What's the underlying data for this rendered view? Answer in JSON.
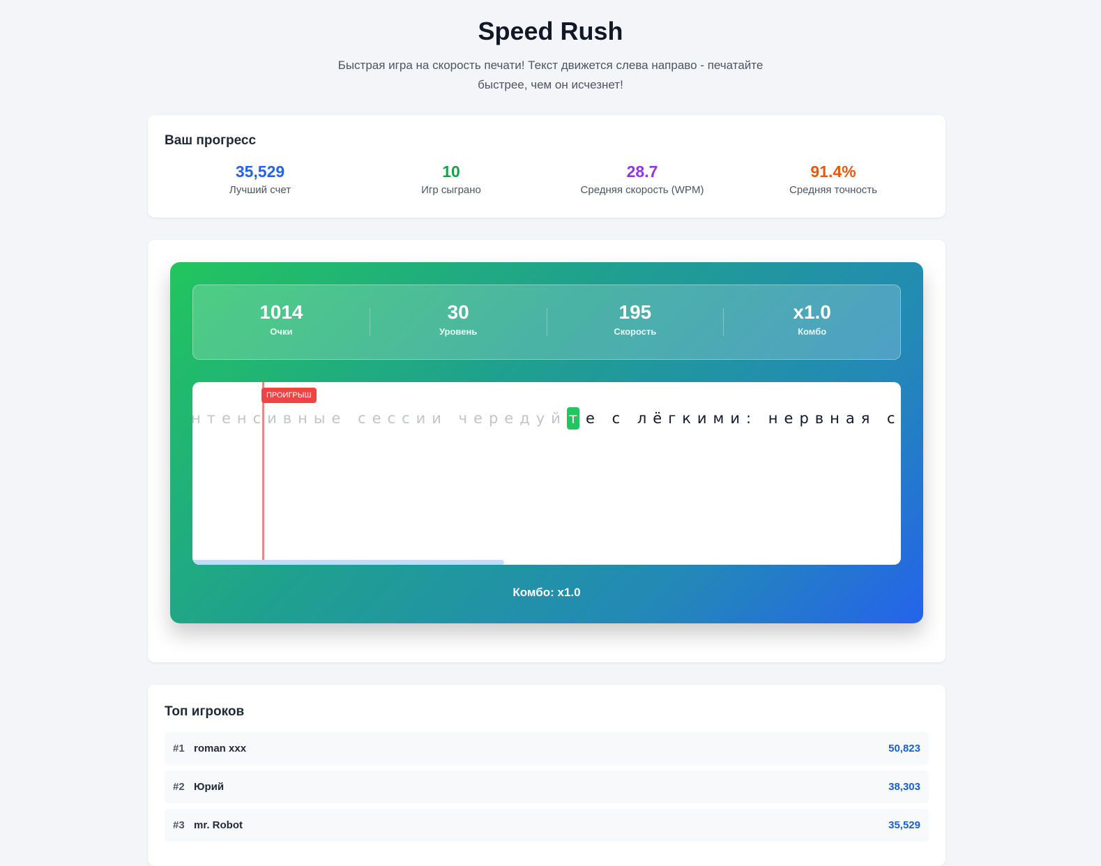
{
  "header": {
    "title": "Speed Rush",
    "subtitle": "Быстрая игра на скорость печати! Текст движется слева направо - печатайте быстрее, чем он исчезнет!"
  },
  "progress": {
    "title": "Ваш прогресс",
    "stats": [
      {
        "value": "35,529",
        "label": "Лучший счет",
        "color": "#2563eb"
      },
      {
        "value": "10",
        "label": "Игр сыграно",
        "color": "#16a34a"
      },
      {
        "value": "28.7",
        "label": "Средняя скорость (WPM)",
        "color": "#9333ea"
      },
      {
        "value": "91.4%",
        "label": "Средняя точность",
        "color": "#ea580c"
      }
    ]
  },
  "game": {
    "hud": [
      {
        "value": "1014",
        "label": "Очки"
      },
      {
        "value": "30",
        "label": "Уровень"
      },
      {
        "value": "195",
        "label": "Скорость"
      },
      {
        "value": "x1.0",
        "label": "Комбо"
      }
    ],
    "lose_label": "ПРОИГРЫШ",
    "typed": "нтенсивные сессии чередуй",
    "current": "т",
    "rest": "е с лёгкими: нервная систе",
    "progress_percent": 44,
    "combo_text": "Комбо: x1.0"
  },
  "leaderboard": {
    "title": "Топ игроков",
    "players": [
      {
        "rank": "#1",
        "name": "roman xxx",
        "score": "50,823"
      },
      {
        "rank": "#2",
        "name": "Юрий",
        "score": "38,303"
      },
      {
        "rank": "#3",
        "name": "mr. Robot",
        "score": "35,529"
      }
    ]
  }
}
